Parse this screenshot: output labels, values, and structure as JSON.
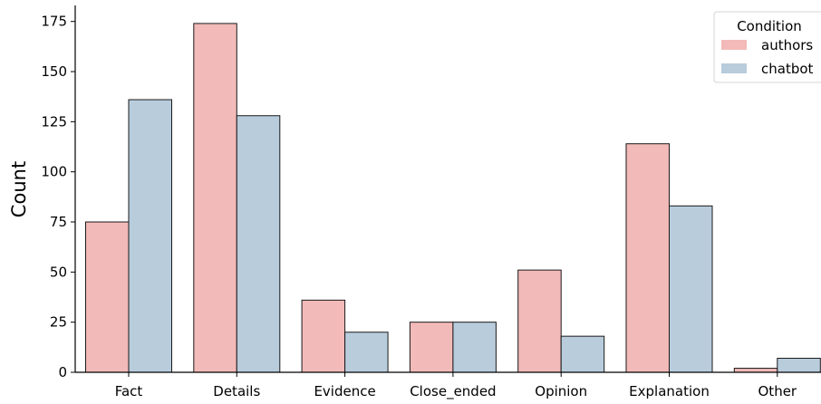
{
  "chart_data": {
    "type": "bar",
    "xlabel": "",
    "ylabel": "Count",
    "ylim": [
      0,
      183
    ],
    "yticks": [
      0,
      25,
      50,
      75,
      100,
      125,
      150,
      175
    ],
    "categories": [
      "Fact",
      "Details",
      "Evidence",
      "Close_ended",
      "Opinion",
      "Explanation",
      "Other"
    ],
    "series": [
      {
        "name": "authors",
        "color": "#f2bab8",
        "values": [
          75,
          174,
          36,
          25,
          51,
          114,
          2
        ]
      },
      {
        "name": "chatbot",
        "color": "#b8ccdc",
        "values": [
          136,
          128,
          20,
          25,
          18,
          83,
          7
        ]
      }
    ],
    "legend": {
      "title": "Condition",
      "position": "top-right"
    },
    "grid": false
  }
}
